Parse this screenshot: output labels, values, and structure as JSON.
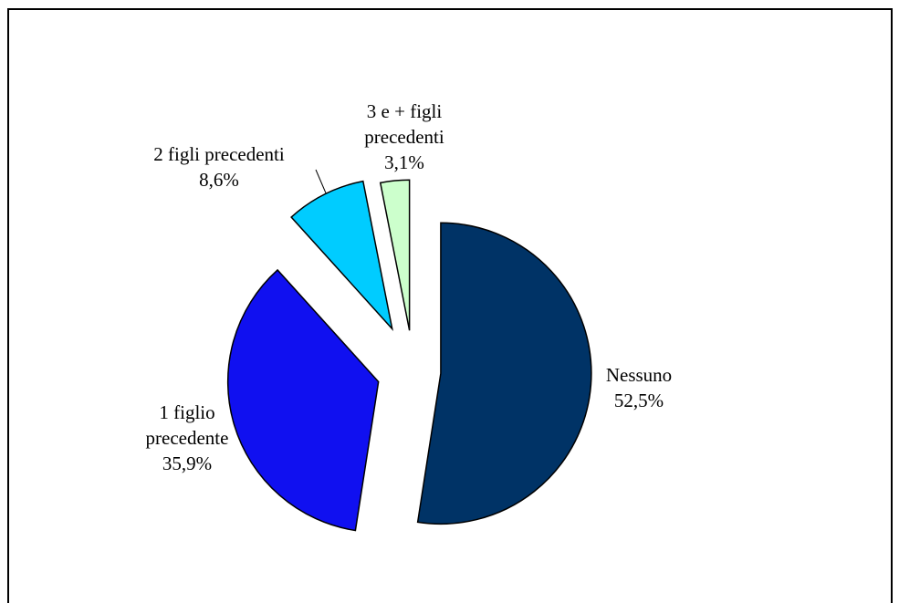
{
  "chart_data": {
    "type": "pie",
    "categories": [
      "Nessuno",
      "1 figlio precedente",
      "2 figli precedenti",
      "3 e + figli precedenti"
    ],
    "values": [
      52.5,
      35.9,
      8.6,
      3.1
    ],
    "value_labels": [
      "52,5%",
      "35,9%",
      "8,6%",
      "3,1%"
    ],
    "colors": [
      "#003366",
      "#1010f0",
      "#00ccff",
      "#ccffcc"
    ]
  }
}
